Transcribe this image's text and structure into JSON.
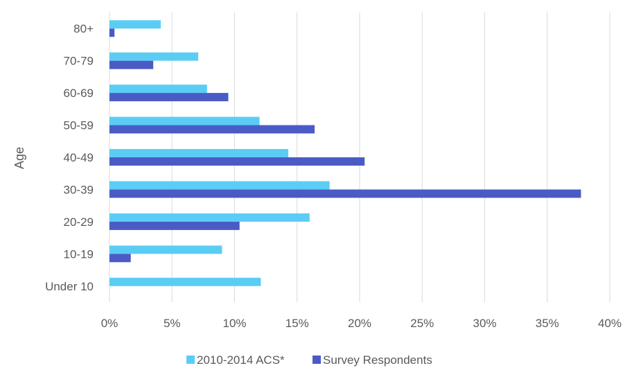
{
  "chart_data": {
    "type": "bar",
    "orientation": "horizontal",
    "ylabel": "Age",
    "xlabel": "",
    "categories": [
      "Under 10",
      "10-19",
      "20-29",
      "30-39",
      "40-49",
      "50-59",
      "60-69",
      "70-79",
      "80+"
    ],
    "series": [
      {
        "name": "2010-2014 ACS*",
        "color": "#5BCDF4",
        "values": [
          12.1,
          9.0,
          16.0,
          17.6,
          14.3,
          12.0,
          7.8,
          7.1,
          4.1
        ]
      },
      {
        "name": "Survey Respondents",
        "color": "#4A5BC6",
        "values": [
          0.0,
          1.7,
          10.4,
          37.7,
          20.4,
          16.4,
          9.5,
          3.5,
          0.4
        ]
      }
    ],
    "xlim": [
      0,
      40
    ],
    "xticks": [
      "0%",
      "5%",
      "10%",
      "15%",
      "20%",
      "25%",
      "30%",
      "35%",
      "40%"
    ],
    "grid": true,
    "legend": "bottom"
  }
}
